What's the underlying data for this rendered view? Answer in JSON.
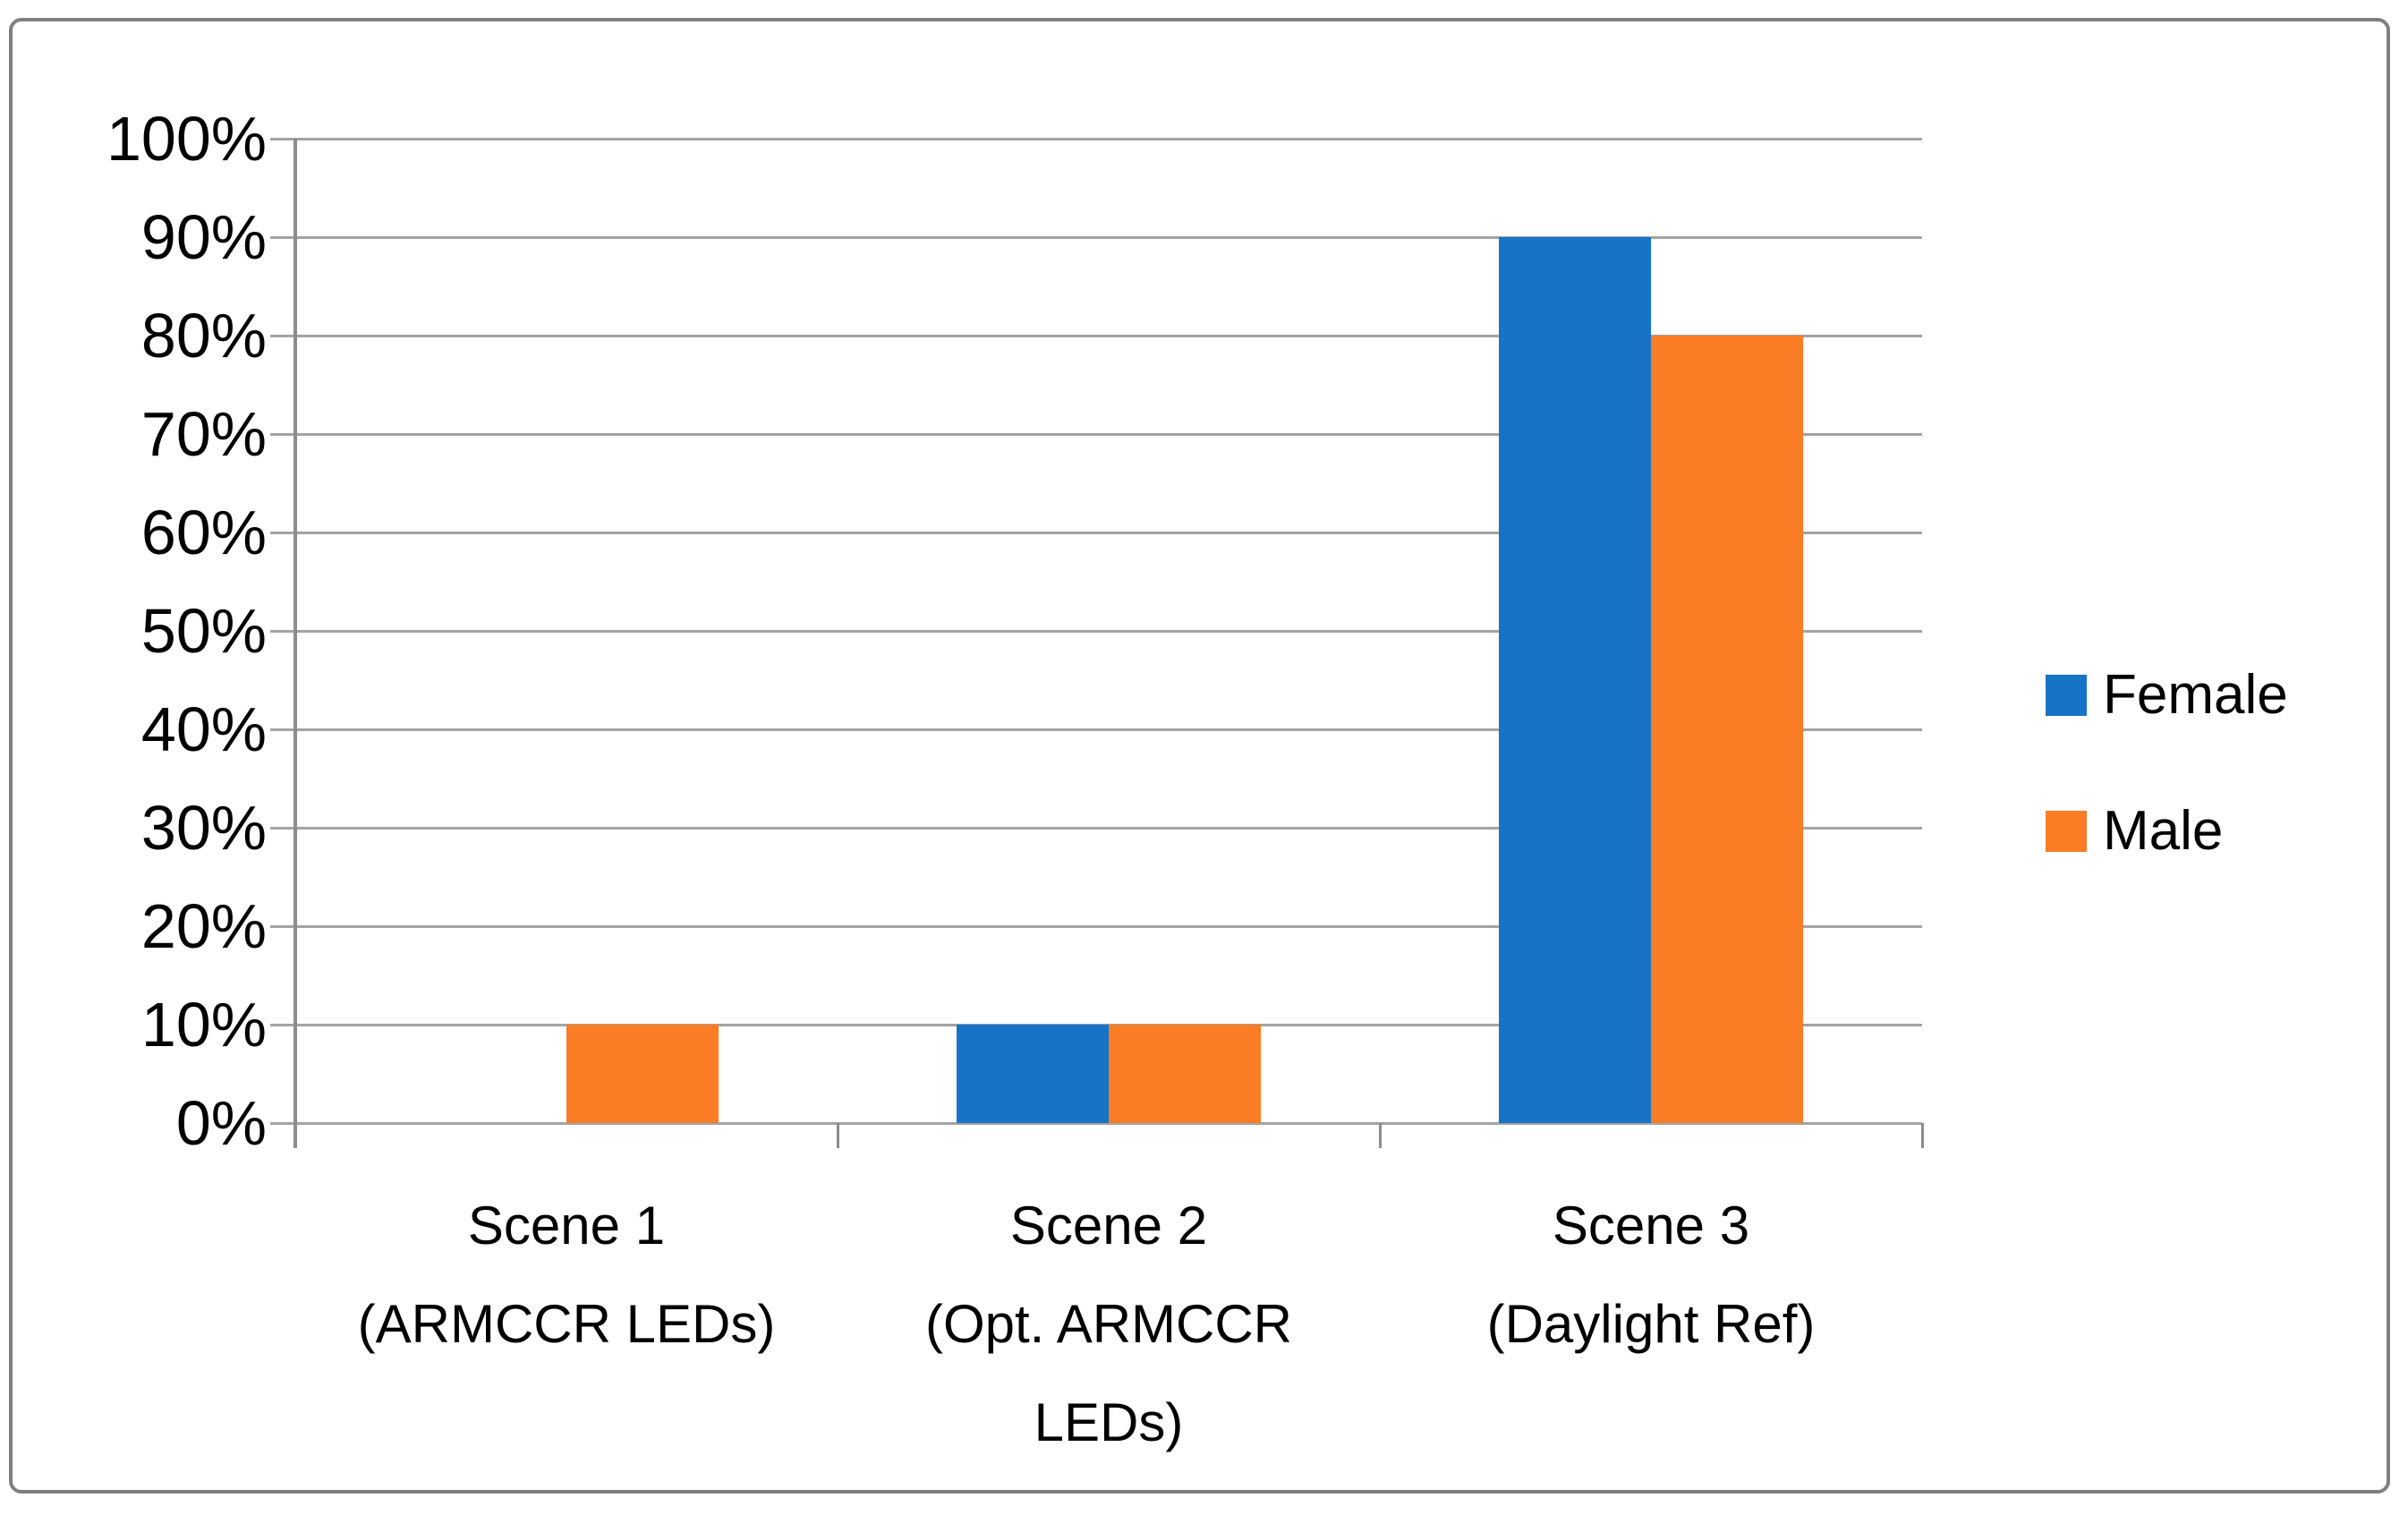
{
  "chart_data": {
    "type": "bar",
    "title": "",
    "categories": [
      {
        "label": "Scene 1 (ARMCCR LEDs)",
        "lines": [
          "Scene 1",
          "(ARMCCR LEDs)"
        ]
      },
      {
        "label": "Scene 2 (Opt. ARMCCR LEDs)",
        "lines": [
          "Scene 2",
          "(Opt. ARMCCR",
          "LEDs)"
        ]
      },
      {
        "label": "Scene 3 (Daylight Ref)",
        "lines": [
          "Scene 3",
          "(Daylight Ref)"
        ]
      }
    ],
    "series": [
      {
        "name": "Female",
        "color": "#1673C8",
        "values": [
          0,
          10,
          90
        ]
      },
      {
        "name": "Male",
        "color": "#FA7D26",
        "values": [
          10,
          10,
          80
        ]
      }
    ],
    "y_axis": {
      "min": 0,
      "max": 100,
      "step": 10,
      "unit": "%",
      "tick_labels": [
        "0%",
        "10%",
        "20%",
        "30%",
        "40%",
        "50%",
        "60%",
        "70%",
        "80%",
        "90%",
        "100%"
      ]
    },
    "xlabel": "",
    "ylabel": "",
    "grid": true,
    "legend_position": "right"
  },
  "colors": {
    "gridline": "#A3A3A3",
    "axis": "#8C8C8C",
    "frame_border": "#7F7F7F",
    "text": "#000000",
    "background": "#FFFFFF"
  }
}
